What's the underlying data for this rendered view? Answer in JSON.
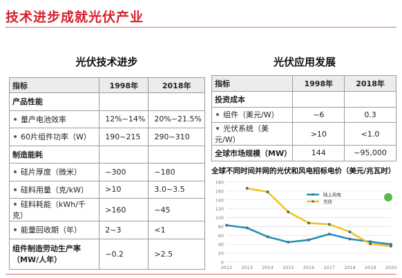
{
  "page_title": "技术进步成就光伏产业",
  "left": {
    "title": "光伏技术进步",
    "header": {
      "col1": "指标",
      "col2": "1998年",
      "col3": "2018年"
    },
    "rows": [
      {
        "kind": "section",
        "label": "产品性能",
        "v1": "",
        "v2": ""
      },
      {
        "kind": "item",
        "label": "量产电池效率",
        "v1": "12%~14%",
        "v2": "20%~21.5%"
      },
      {
        "kind": "item",
        "label": "60片组件功率（W）",
        "v1": "190~215",
        "v2": "290~310"
      },
      {
        "kind": "section",
        "label": "制造能耗",
        "v1": "",
        "v2": ""
      },
      {
        "kind": "item",
        "label": "硅片厚度（微米）",
        "v1": "~300",
        "v2": "~180"
      },
      {
        "kind": "item",
        "label": "硅料用量（克/kW）",
        "v1": ">10",
        "v2": "3.0~3.5"
      },
      {
        "kind": "item",
        "label": "硅料耗能（kWh/千克）",
        "v1": ">160",
        "v2": "~45"
      },
      {
        "kind": "item",
        "label": "能量回收期（年）",
        "v1": "2~3",
        "v2": "<1"
      },
      {
        "kind": "section2",
        "label": "组件制造劳动生产率",
        "label2": "（MW/人年）",
        "v1": "~0.2",
        "v2": ">2.5"
      }
    ]
  },
  "right": {
    "title": "光伏应用发展",
    "header": {
      "col1": "指标",
      "col2": "1998年",
      "col3": "2018年"
    },
    "rows": [
      {
        "kind": "section",
        "label": "投资成本",
        "v1": "",
        "v2": ""
      },
      {
        "kind": "item",
        "label": "组件（美元/W）",
        "v1": "~6",
        "v2": "0.3"
      },
      {
        "kind": "item",
        "label": "光伏系统（美元/W）",
        "v1": ">10",
        "v2": "<1.0"
      },
      {
        "kind": "section",
        "label": "全球市场规模（MW）",
        "v1": "144",
        "v2": "~95,000"
      }
    ]
  },
  "chart_data": {
    "type": "line",
    "title": "全球不同时间并网的光伏和风电招标电价（美元/兆瓦时）",
    "x": [
      2012,
      2013,
      2014,
      2015,
      2016,
      2017,
      2018,
      2019,
      2020
    ],
    "ylim": [
      0,
      180
    ],
    "yticks": [
      0,
      20,
      40,
      60,
      80,
      100,
      120,
      140,
      160,
      180
    ],
    "xticks": [
      "2012",
      "2013",
      "2014",
      "2015",
      "2016",
      "2017",
      "2018",
      "2019",
      "2020"
    ],
    "grid": true,
    "legend_position": "top-center",
    "series": [
      {
        "name": "陆上风电",
        "color": "#1f8fb5",
        "values": [
          83,
          77,
          57,
          45,
          50,
          63,
          52,
          46,
          40
        ]
      },
      {
        "name": "光伏",
        "color": "#f2c21d",
        "values": [
          null,
          166,
          158,
          113,
          88,
          85,
          68,
          41,
          36
        ]
      }
    ]
  }
}
